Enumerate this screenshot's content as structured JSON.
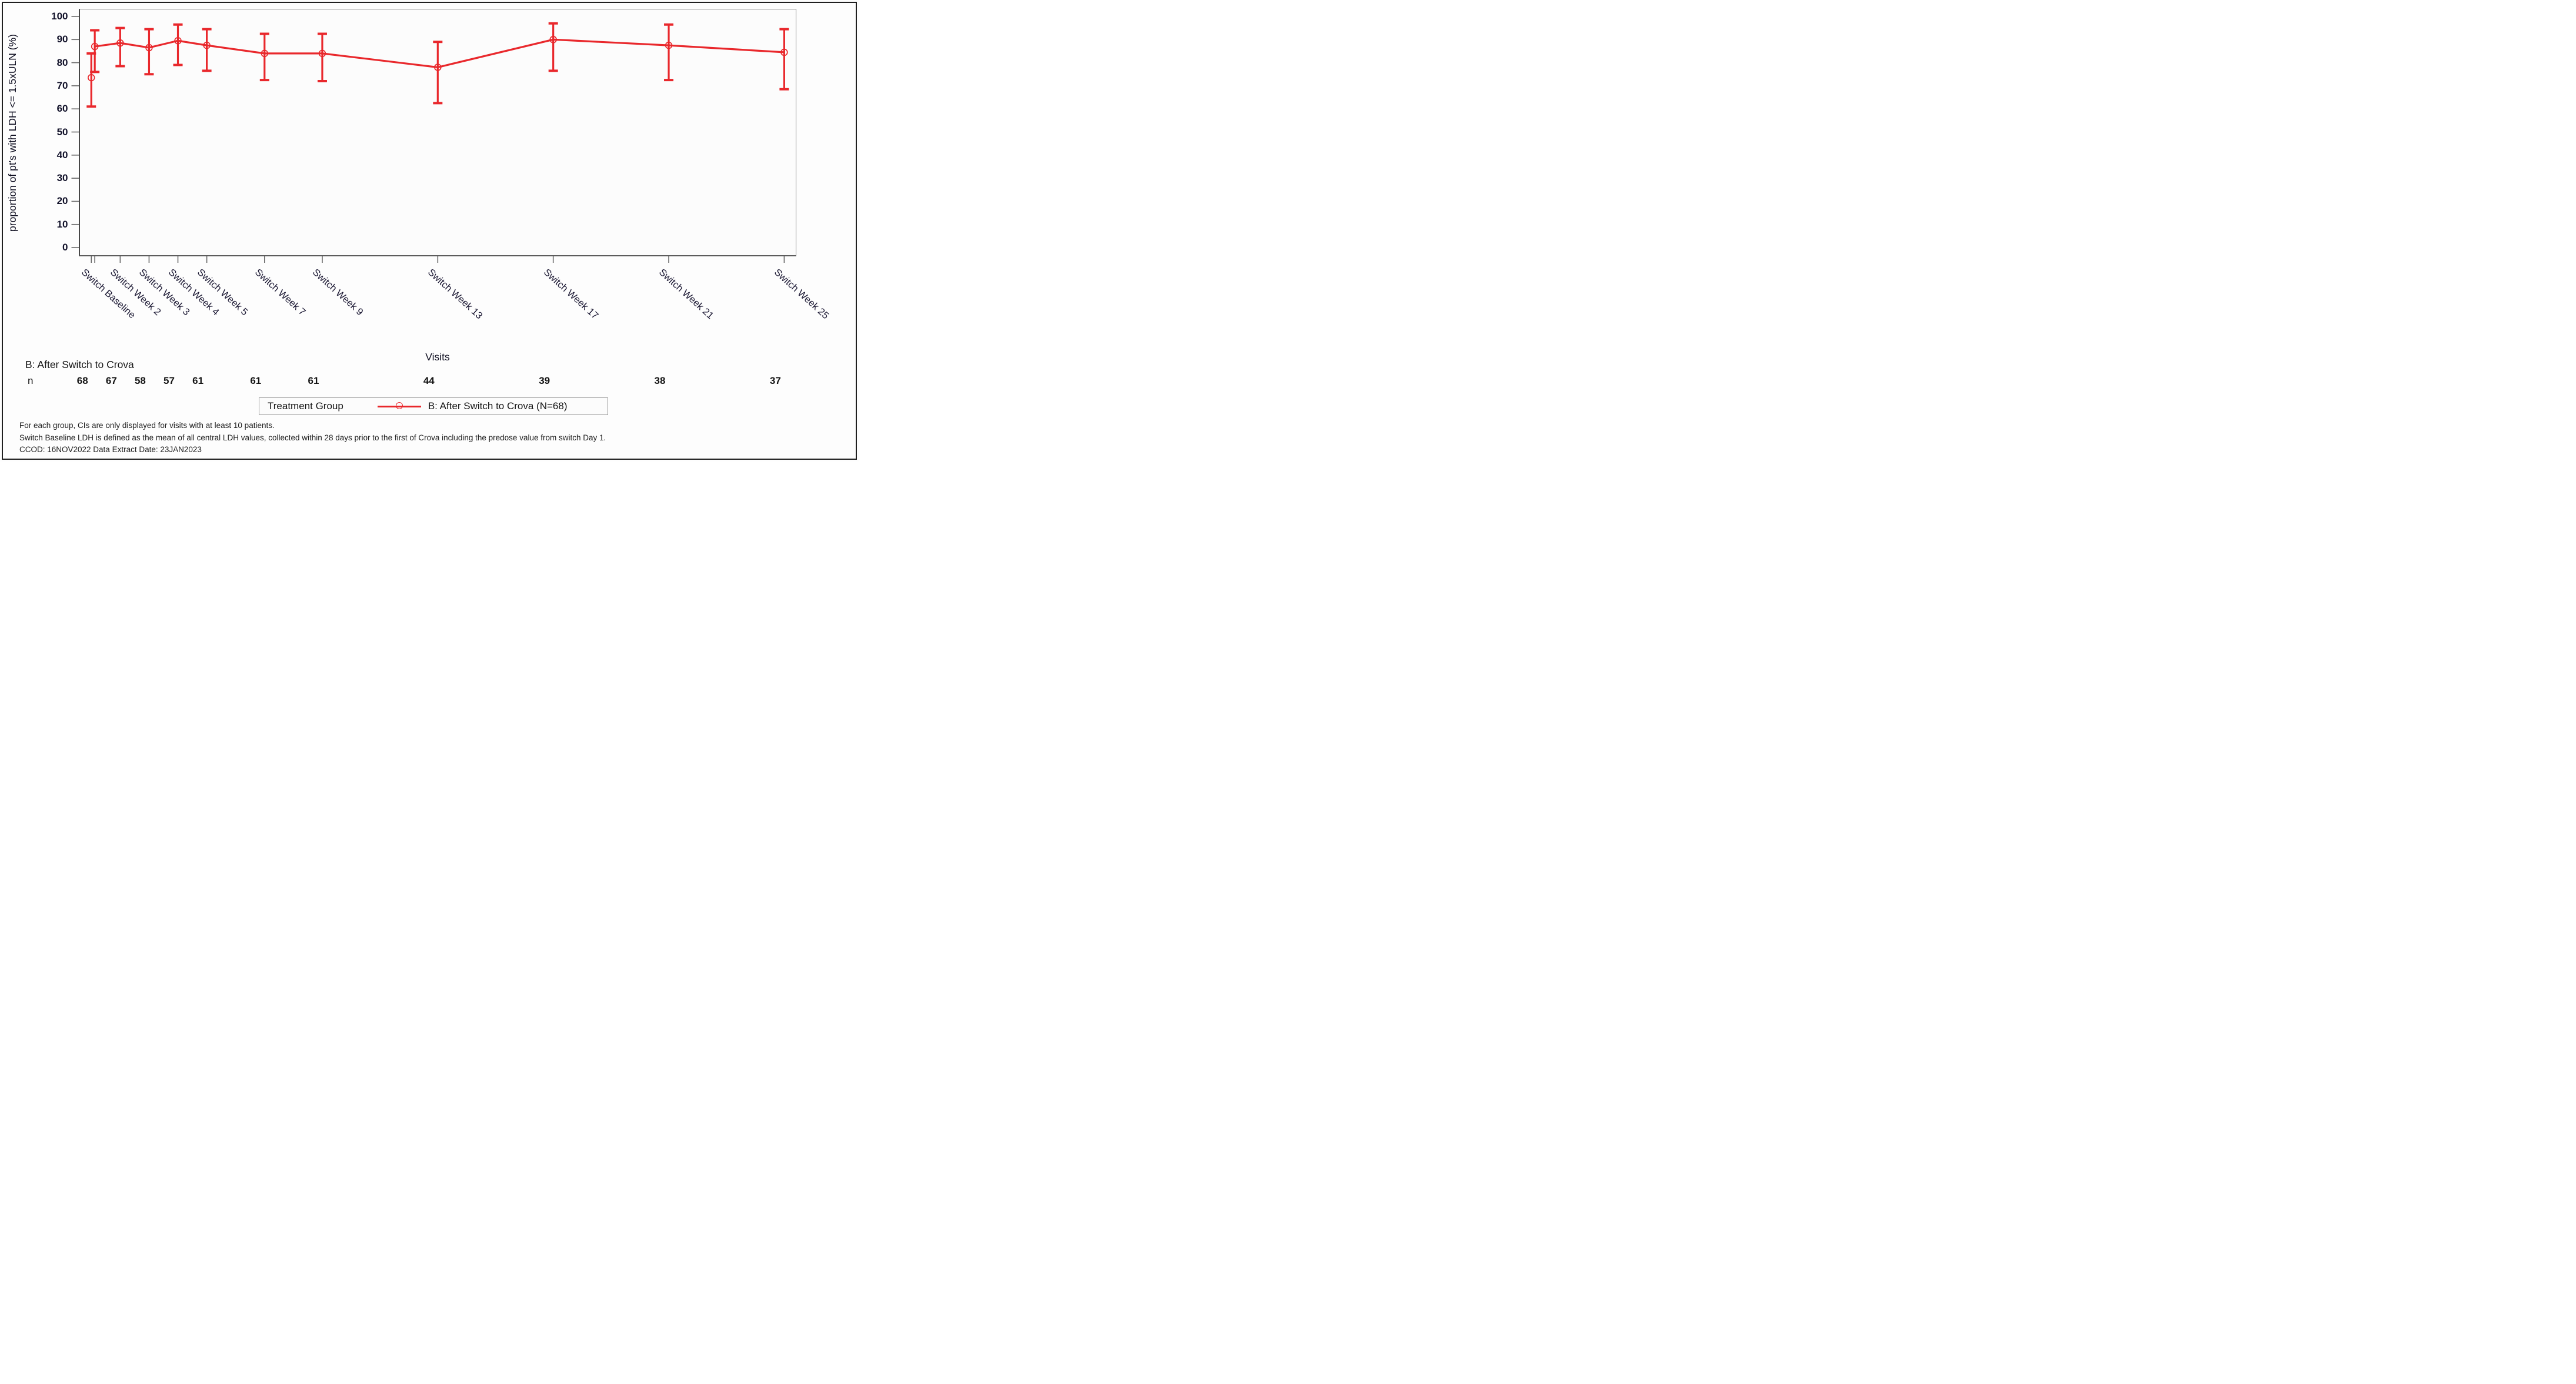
{
  "figure": {
    "y_axis_title": "proportion of pt's with LDH <= 1.5xULN (%)",
    "x_axis_title": "Visits",
    "group_label": "B: After Switch to Crova",
    "n_row_label": "n",
    "legend": {
      "title": "Treatment Group",
      "entry": "B: After Switch to Crova (N=68)"
    },
    "footnotes": [
      "For each group, CIs are only displayed for visits with at least 10 patients.",
      "Switch Baseline LDH is defined as the mean of all central LDH values, collected within 28 days prior to the first of Crova including the predose value from switch Day 1.",
      "CCOD: 16NOV2022 Data Extract Date: 23JAN2023"
    ]
  },
  "chart_data": {
    "type": "line",
    "title": "",
    "xlabel": "Visits",
    "ylabel": "proportion of pt's with LDH <= 1.5xULN (%)",
    "ylim": [
      0,
      100
    ],
    "y_ticks": [
      0,
      10,
      20,
      30,
      40,
      50,
      60,
      70,
      80,
      90,
      100
    ],
    "x_unit": "weeks since switch",
    "grid": "off",
    "legend_position": "bottom",
    "error_bars": "95% CI",
    "series": [
      {
        "name": "B: After Switch to Crova (N=68)",
        "color": "#e9282c",
        "marker": "open-circle",
        "points": [
          {
            "visit": "Switch Baseline",
            "week": 1.0,
            "value": 73.5,
            "ci_low": 61.0,
            "ci_high": 84.0,
            "n": 68,
            "on_line": false
          },
          {
            "visit": "",
            "week": 1.12,
            "value": 87.0,
            "ci_low": 76.0,
            "ci_high": 94.0,
            "n": null,
            "on_line": true
          },
          {
            "visit": "Switch Week 2",
            "week": 2,
            "value": 88.5,
            "ci_low": 78.5,
            "ci_high": 95.0,
            "n": 67,
            "on_line": true
          },
          {
            "visit": "Switch Week 3",
            "week": 3,
            "value": 86.5,
            "ci_low": 75.0,
            "ci_high": 94.5,
            "n": 58,
            "on_line": true
          },
          {
            "visit": "Switch Week 4",
            "week": 4,
            "value": 89.5,
            "ci_low": 79.0,
            "ci_high": 96.5,
            "n": 57,
            "on_line": true
          },
          {
            "visit": "Switch Week 5",
            "week": 5,
            "value": 87.5,
            "ci_low": 76.5,
            "ci_high": 94.5,
            "n": 61,
            "on_line": true
          },
          {
            "visit": "Switch Week 7",
            "week": 7,
            "value": 84.0,
            "ci_low": 72.5,
            "ci_high": 92.5,
            "n": 61,
            "on_line": true
          },
          {
            "visit": "Switch Week 9",
            "week": 9,
            "value": 84.0,
            "ci_low": 72.0,
            "ci_high": 92.5,
            "n": 61,
            "on_line": true
          },
          {
            "visit": "Switch Week 13",
            "week": 13,
            "value": 78.0,
            "ci_low": 62.5,
            "ci_high": 89.0,
            "n": 44,
            "on_line": true
          },
          {
            "visit": "Switch Week 17",
            "week": 17,
            "value": 90.0,
            "ci_low": 76.5,
            "ci_high": 97.0,
            "n": 39,
            "on_line": true
          },
          {
            "visit": "Switch Week 21",
            "week": 21,
            "value": 87.5,
            "ci_low": 72.5,
            "ci_high": 96.5,
            "n": 38,
            "on_line": true
          },
          {
            "visit": "Switch Week 25",
            "week": 25,
            "value": 84.5,
            "ci_low": 68.5,
            "ci_high": 94.5,
            "n": 37,
            "on_line": true
          }
        ]
      }
    ]
  }
}
